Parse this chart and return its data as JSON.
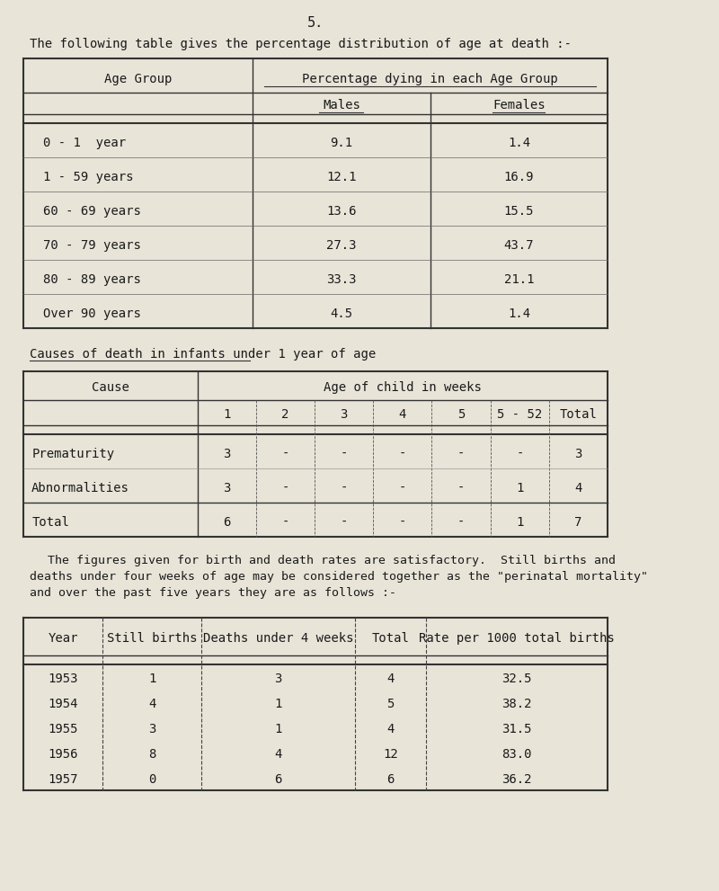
{
  "page_number": "5.",
  "bg_color": "#e8e4d8",
  "text_color": "#1a1a1a",
  "intro_text": "The following table gives the percentage distribution of age at death :-",
  "table1_header_col": "Age Group",
  "table1_header_span": "Percentage dying in each Age Group",
  "table1_subheaders": [
    "Males",
    "Females"
  ],
  "table1_rows": [
    [
      "0 - 1  year",
      "9.1",
      "1.4"
    ],
    [
      "1 - 59 years",
      "12.1",
      "16.9"
    ],
    [
      "60 - 69 years",
      "13.6",
      "15.5"
    ],
    [
      "70 - 79 years",
      "27.3",
      "43.7"
    ],
    [
      "80 - 89 years",
      "33.3",
      "21.1"
    ],
    [
      "Over 90 years",
      "4.5",
      "1.4"
    ]
  ],
  "section2_title": "Causes of death in infants under 1 year of age",
  "table2_col_header": "Cause",
  "table2_span_header": "Age of child in weeks",
  "table2_week_cols": [
    "1",
    "2",
    "3",
    "4",
    "5",
    "5 - 52",
    "Total"
  ],
  "table2_rows": [
    [
      "Prematurity",
      "3",
      "-",
      "-",
      "-",
      "-",
      "-",
      "3"
    ],
    [
      "Abnormalities",
      "3",
      "-",
      "-",
      "-",
      "-",
      "1",
      "4"
    ]
  ],
  "table2_total_row": [
    "Total",
    "6",
    "-",
    "-",
    "-",
    "-",
    "1",
    "7"
  ],
  "paragraph_text": "The figures given for birth and death rates are satisfactory.  Still births and\ndeaths under four weeks of age may be considered together as the \"perinatal mortality\"\nand over the past five years they are as follows :-",
  "table3_headers": [
    "Year",
    "Still births",
    "Deaths under 4 weeks",
    "Total",
    "Rate per 1000 total births"
  ],
  "table3_rows": [
    [
      "1953",
      "1",
      "3",
      "4",
      "32.5"
    ],
    [
      "1954",
      "4",
      "1",
      "5",
      "38.2"
    ],
    [
      "1955",
      "3",
      "1",
      "4",
      "31.5"
    ],
    [
      "1956",
      "8",
      "4",
      "12",
      "83.0"
    ],
    [
      "1957",
      "0",
      "6",
      "6",
      "36.2"
    ]
  ]
}
